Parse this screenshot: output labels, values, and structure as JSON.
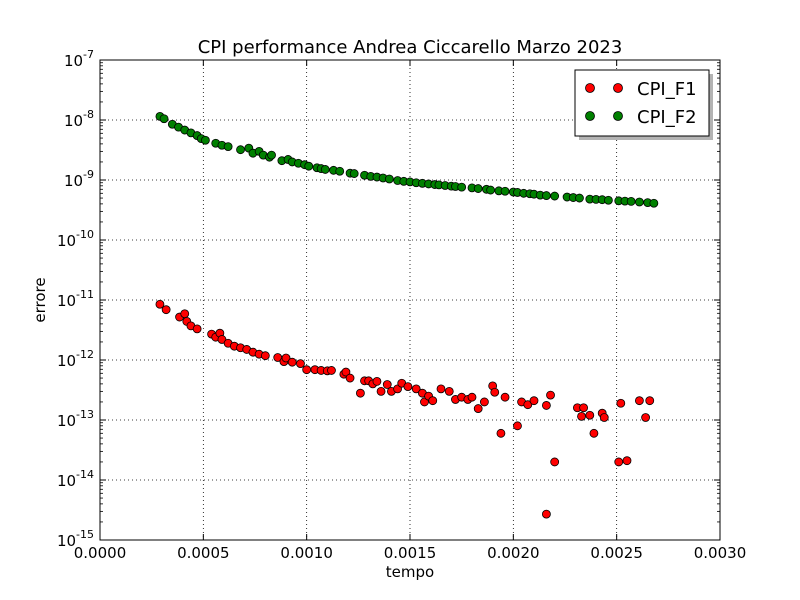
{
  "chart_data": {
    "type": "scatter",
    "title": "CPI performance   Andrea Ciccarello  Marzo 2023",
    "xlabel": "tempo",
    "ylabel": "errore",
    "xlim": [
      0.0,
      0.003
    ],
    "ylim": [
      1e-15,
      1e-07
    ],
    "yscale": "log",
    "grid": true,
    "legend_position": "top-right",
    "x_ticks": [
      "0.0000",
      "0.0005",
      "0.0010",
      "0.0015",
      "0.0020",
      "0.0025",
      "0.0030"
    ],
    "y_ticks": [
      {
        "base": "10",
        "exp": "-15"
      },
      {
        "base": "10",
        "exp": "-14"
      },
      {
        "base": "10",
        "exp": "-13"
      },
      {
        "base": "10",
        "exp": "-12"
      },
      {
        "base": "10",
        "exp": "-11"
      },
      {
        "base": "10",
        "exp": "-10"
      },
      {
        "base": "10",
        "exp": "-9"
      },
      {
        "base": "10",
        "exp": "-8"
      },
      {
        "base": "10",
        "exp": "-7"
      }
    ],
    "series": [
      {
        "name": "CPI_F1",
        "color": "#ff0000",
        "points": [
          [
            0.00029,
            8.5e-12
          ],
          [
            0.00032,
            6.9e-12
          ],
          [
            0.000385,
            5.2e-12
          ],
          [
            0.00041,
            5.9e-12
          ],
          [
            0.00042,
            4.4e-12
          ],
          [
            0.00044,
            3.7e-12
          ],
          [
            0.00047,
            3.3e-12
          ],
          [
            0.00054,
            2.7e-12
          ],
          [
            0.00056,
            2.4e-12
          ],
          [
            0.00058,
            2.8e-12
          ],
          [
            0.00059,
            2.2e-12
          ],
          [
            0.00062,
            1.9e-12
          ],
          [
            0.00065,
            1.7e-12
          ],
          [
            0.00068,
            1.6e-12
          ],
          [
            0.00071,
            1.5e-12
          ],
          [
            0.00074,
            1.35e-12
          ],
          [
            0.00077,
            1.25e-12
          ],
          [
            0.0008,
            1.18e-12
          ],
          [
            0.00086,
            1.1e-12
          ],
          [
            0.00089,
            9.4e-13
          ],
          [
            0.0009,
            1.08e-12
          ],
          [
            0.00093,
            9.2e-13
          ],
          [
            0.00097,
            8.7e-13
          ],
          [
            0.001,
            6.9e-13
          ],
          [
            0.00104,
            6.9e-13
          ],
          [
            0.00107,
            6.7e-13
          ],
          [
            0.0011,
            6.6e-13
          ],
          [
            0.00112,
            6.7e-13
          ],
          [
            0.00118,
            5.8e-13
          ],
          [
            0.00119,
            6.3e-13
          ],
          [
            0.00121,
            5e-13
          ],
          [
            0.00126,
            2.8e-13
          ],
          [
            0.00128,
            4.5e-13
          ],
          [
            0.0013,
            4.5e-13
          ],
          [
            0.00132,
            4e-13
          ],
          [
            0.00134,
            4.4e-13
          ],
          [
            0.00136,
            3e-13
          ],
          [
            0.00139,
            3.9e-13
          ],
          [
            0.00141,
            3e-13
          ],
          [
            0.00144,
            3.3e-13
          ],
          [
            0.00146,
            4.1e-13
          ],
          [
            0.00149,
            3.6e-13
          ],
          [
            0.00153,
            3.3e-13
          ],
          [
            0.00156,
            2.8e-13
          ],
          [
            0.00157,
            2e-13
          ],
          [
            0.00159,
            2.5e-13
          ],
          [
            0.00161,
            2.1e-13
          ],
          [
            0.00165,
            3.3e-13
          ],
          [
            0.00169,
            3e-13
          ],
          [
            0.00172,
            2.2e-13
          ],
          [
            0.00175,
            2.4e-13
          ],
          [
            0.00178,
            2.2e-13
          ],
          [
            0.0018,
            2.4e-13
          ],
          [
            0.00183,
            1.55e-13
          ],
          [
            0.00186,
            2e-13
          ],
          [
            0.0019,
            3.7e-13
          ],
          [
            0.00191,
            2.9e-13
          ],
          [
            0.00194,
            6e-14
          ],
          [
            0.00196,
            2.4e-13
          ],
          [
            0.00202,
            8e-14
          ],
          [
            0.00204,
            2e-13
          ],
          [
            0.00207,
            1.8e-13
          ],
          [
            0.0021,
            2.1e-13
          ],
          [
            0.00216,
            1.75e-13
          ],
          [
            0.00216,
            2.7e-15
          ],
          [
            0.00218,
            2.6e-13
          ],
          [
            0.0022,
            2e-14
          ],
          [
            0.00231,
            1.6e-13
          ],
          [
            0.00233,
            1.15e-13
          ],
          [
            0.00234,
            1.6e-13
          ],
          [
            0.00237,
            1.2e-13
          ],
          [
            0.00239,
            6e-14
          ],
          [
            0.00243,
            1.3e-13
          ],
          [
            0.00244,
            1.1e-13
          ],
          [
            0.00251,
            2e-14
          ],
          [
            0.00252,
            1.9e-13
          ],
          [
            0.00255,
            2.1e-14
          ],
          [
            0.00261,
            2.1e-13
          ],
          [
            0.00264,
            1.1e-13
          ],
          [
            0.00266,
            2.1e-13
          ]
        ]
      },
      {
        "name": "CPI_F2",
        "color": "#008000",
        "points": [
          [
            0.00029,
            1.15e-08
          ],
          [
            0.00031,
            1.05e-08
          ],
          [
            0.00035,
            8.5e-09
          ],
          [
            0.00038,
            7.6e-09
          ],
          [
            0.00041,
            6.8e-09
          ],
          [
            0.00044,
            6.1e-09
          ],
          [
            0.00047,
            5.5e-09
          ],
          [
            0.00049,
            4.9e-09
          ],
          [
            0.00051,
            4.6e-09
          ],
          [
            0.00056,
            4.1e-09
          ],
          [
            0.00059,
            3.8e-09
          ],
          [
            0.00062,
            3.6e-09
          ],
          [
            0.00068,
            3.2e-09
          ],
          [
            0.00072,
            3.4e-09
          ],
          [
            0.00074,
            2.8e-09
          ],
          [
            0.00077,
            3e-09
          ],
          [
            0.00079,
            2.6e-09
          ],
          [
            0.00082,
            2.4e-09
          ],
          [
            0.00083,
            2.6e-09
          ],
          [
            0.00088,
            2.1e-09
          ],
          [
            0.00091,
            2.2e-09
          ],
          [
            0.00093,
            2e-09
          ],
          [
            0.00096,
            1.9e-09
          ],
          [
            0.00099,
            1.8e-09
          ],
          [
            0.00101,
            1.7e-09
          ],
          [
            0.00105,
            1.6e-09
          ],
          [
            0.00107,
            1.55e-09
          ],
          [
            0.00109,
            1.5e-09
          ],
          [
            0.00113,
            1.45e-09
          ],
          [
            0.00116,
            1.4e-09
          ],
          [
            0.00121,
            1.3e-09
          ],
          [
            0.00123,
            1.28e-09
          ],
          [
            0.00128,
            1.2e-09
          ],
          [
            0.00131,
            1.15e-09
          ],
          [
            0.00134,
            1.12e-09
          ],
          [
            0.00137,
            1.08e-09
          ],
          [
            0.0014,
            1.04e-09
          ],
          [
            0.00144,
            9.8e-10
          ],
          [
            0.00147,
            9.5e-10
          ],
          [
            0.0015,
            9.3e-10
          ],
          [
            0.00153,
            9e-10
          ],
          [
            0.00156,
            8.8e-10
          ],
          [
            0.00159,
            8.6e-10
          ],
          [
            0.00162,
            8.4e-10
          ],
          [
            0.00164,
            8.3e-10
          ],
          [
            0.00167,
            8.1e-10
          ],
          [
            0.0017,
            7.9e-10
          ],
          [
            0.00172,
            7.8e-10
          ],
          [
            0.00175,
            7.6e-10
          ],
          [
            0.0018,
            7.4e-10
          ],
          [
            0.00183,
            7.2e-10
          ],
          [
            0.00187,
            7e-10
          ],
          [
            0.00189,
            6.8e-10
          ],
          [
            0.00193,
            6.6e-10
          ],
          [
            0.00196,
            6.5e-10
          ],
          [
            0.002,
            6.3e-10
          ],
          [
            0.00202,
            6.2e-10
          ],
          [
            0.00205,
            6e-10
          ],
          [
            0.00208,
            5.9e-10
          ],
          [
            0.0021,
            5.8e-10
          ],
          [
            0.00213,
            5.6e-10
          ],
          [
            0.00216,
            5.5e-10
          ],
          [
            0.0022,
            5.4e-10
          ],
          [
            0.00226,
            5.2e-10
          ],
          [
            0.00229,
            5.1e-10
          ],
          [
            0.00232,
            5e-10
          ],
          [
            0.00237,
            4.8e-10
          ],
          [
            0.0024,
            4.75e-10
          ],
          [
            0.00243,
            4.7e-10
          ],
          [
            0.00246,
            4.6e-10
          ],
          [
            0.00251,
            4.5e-10
          ],
          [
            0.00254,
            4.45e-10
          ],
          [
            0.00257,
            4.4e-10
          ],
          [
            0.00261,
            4.3e-10
          ],
          [
            0.00265,
            4.2e-10
          ],
          [
            0.00268,
            4.1e-10
          ]
        ]
      }
    ]
  }
}
